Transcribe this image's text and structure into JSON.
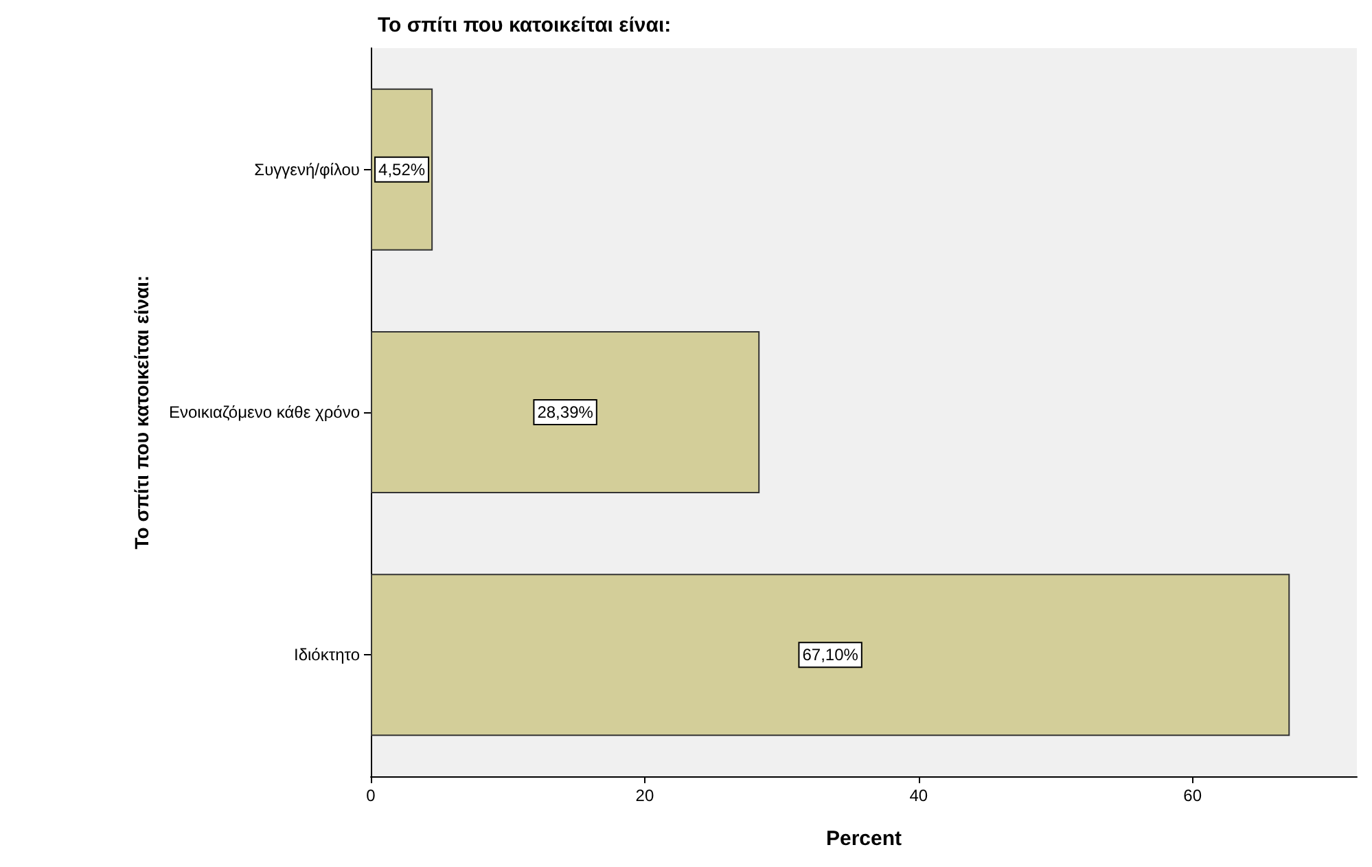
{
  "chart_data": {
    "type": "bar",
    "orientation": "horizontal",
    "title": "Το σπίτι που κατοικείται είναι:",
    "xlabel": "Percent",
    "ylabel": "Το σπίτι που κατοικείται είναι:",
    "categories": [
      "Συγγενή/φίλου",
      "Ενοικιαζόμενο κάθε χρόνο",
      "Ιδιόκτητο"
    ],
    "values": [
      4.52,
      28.39,
      67.1
    ],
    "value_labels": [
      "4,52%",
      "28,39%",
      "67,10%"
    ],
    "color": "#d3ce99",
    "xlim": [
      0,
      72
    ],
    "xticks": [
      0,
      20,
      40,
      60
    ]
  }
}
